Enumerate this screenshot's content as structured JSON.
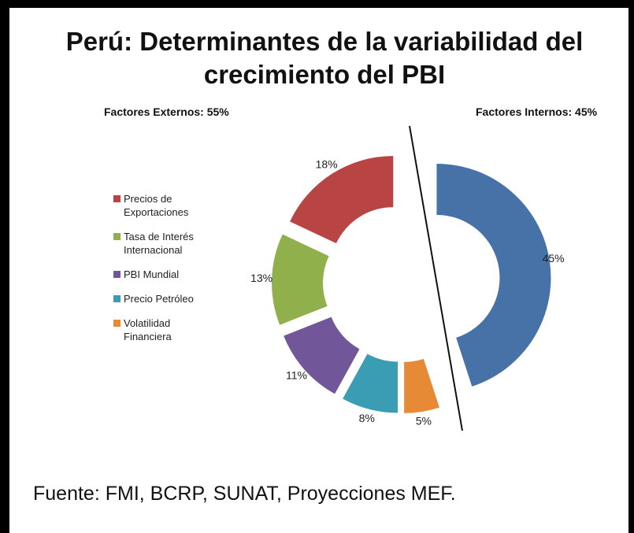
{
  "chart_data": {
    "type": "donut",
    "title": "Perú: Determinantes de la variabilidad del crecimiento del PBI",
    "left_heading": "Factores Externos: 55%",
    "right_heading": "Factores Internos: 45%",
    "categories": [
      "Precios de Exportaciones",
      "Tasa de Interés Internacional",
      "PBI Mundial",
      "Precio Petróleo",
      "Volatilidad Financiera",
      null
    ],
    "values": [
      18,
      13,
      11,
      8,
      5,
      45
    ],
    "value_labels": [
      "18%",
      "13%",
      "11%",
      "8%",
      "5%",
      "45%"
    ],
    "colors": [
      "#b84444",
      "#8fb04a",
      "#72569a",
      "#3a9db3",
      "#e68a35",
      "#4672a8"
    ],
    "legend": "left",
    "source": "Fuente: FMI, BCRP, SUNAT, Proyecciones MEF."
  }
}
